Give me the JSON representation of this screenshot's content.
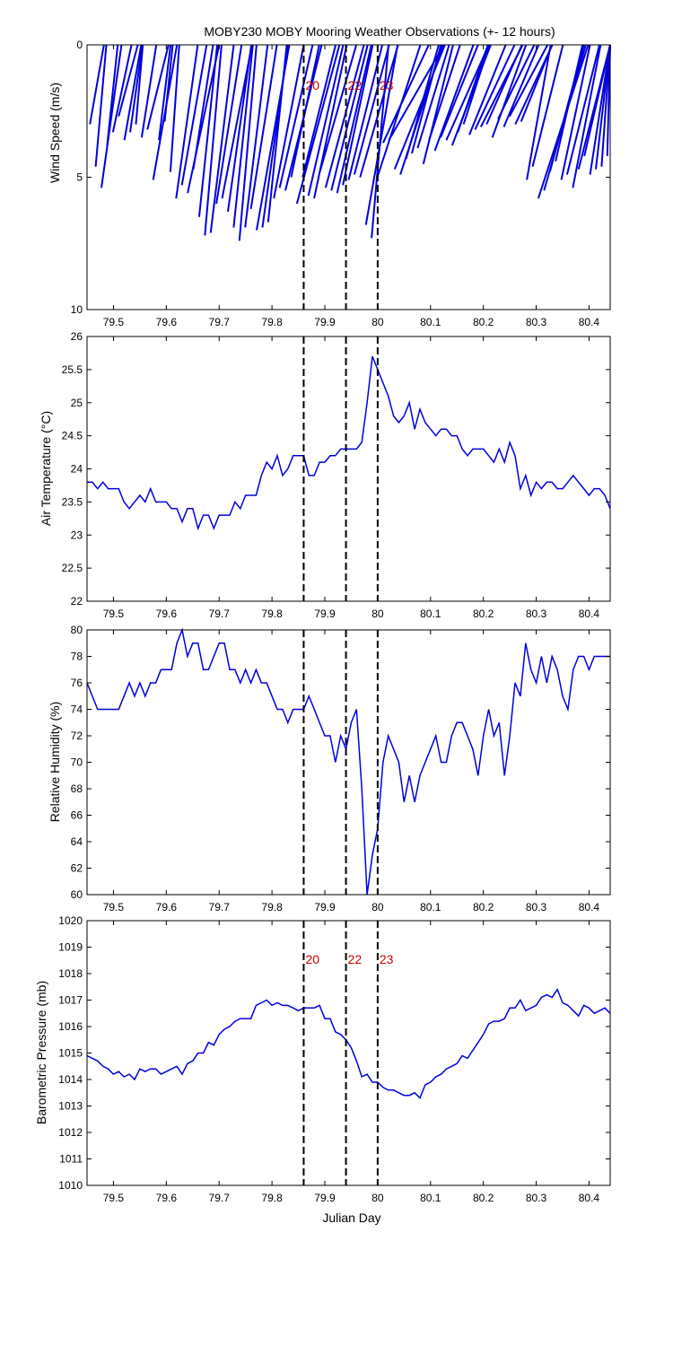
{
  "chart_data": [
    {
      "type": "line",
      "variable": "wind",
      "title": "MOBY230 MOBY Mooring Weather Observations (+- 12 hours)",
      "xlabel": "",
      "ylabel": "Wind Speed (m/s)",
      "xlim": [
        79.45,
        80.44
      ],
      "ylim": [
        10,
        0
      ],
      "yticks": [
        0,
        5,
        10
      ],
      "xticks": [
        79.5,
        79.6,
        79.7,
        79.8,
        79.9,
        80.0,
        80.1,
        80.2,
        80.3,
        80.4
      ],
      "xtick_labels": [
        "79.5",
        "79.6",
        "79.7",
        "79.8",
        "79.9",
        "80",
        "80.1",
        "80.2",
        "80.3",
        "80.4"
      ],
      "vlines": [
        79.86,
        79.94,
        80.0
      ],
      "annotations": [
        {
          "x": 79.86,
          "label": "20"
        },
        {
          "x": 79.94,
          "label": "22"
        },
        {
          "x": 80.0,
          "label": "23"
        }
      ],
      "color": "#0000dd",
      "wind_speed": [
        3.0,
        4.6,
        5.4,
        3.8,
        3.3,
        2.7,
        3.6,
        3.3,
        3.0,
        3.5,
        3.2,
        5.1,
        3.6,
        2.9,
        4.8,
        5.8,
        5.3,
        5.6,
        4.7,
        6.5,
        7.2,
        7.1,
        6.0,
        5.8,
        6.3,
        6.9,
        7.4,
        6.9,
        6.2,
        7.0,
        6.9,
        6.7,
        5.8,
        5.4,
        5.5,
        5.0,
        6.0,
        5.0,
        5.7,
        5.8,
        4.8,
        5.4,
        5.5,
        5.6,
        5.3,
        5.1,
        4.9,
        5.0,
        6.8,
        7.3,
        5.0,
        3.7,
        3.6,
        4.7,
        4.9,
        4.3,
        4.1,
        3.9,
        4.5,
        3.6,
        4.0,
        3.5,
        3.6,
        3.8,
        3.3,
        3.0,
        3.4,
        3.2,
        3.1,
        3.0,
        3.5,
        2.8,
        3.1,
        2.7,
        3.0,
        2.9,
        5.1,
        4.6,
        5.8,
        5.5,
        4.8,
        4.4,
        5.1,
        4.9,
        5.4,
        4.7,
        4.2,
        4.9,
        4.7,
        4.6,
        4.2
      ],
      "wind_dir_deg": [
        10,
        5,
        8,
        6,
        12,
        15,
        10,
        8,
        5,
        9,
        14,
        10,
        7,
        6,
        4,
        8,
        10,
        12,
        9,
        6,
        5,
        7,
        9,
        11,
        8,
        6,
        5,
        7,
        9,
        10,
        8,
        6,
        11,
        13,
        14,
        12,
        15,
        14,
        13,
        12,
        16,
        15,
        14,
        13,
        12,
        14,
        15,
        16,
        10,
        5,
        18,
        25,
        30,
        22,
        18,
        16,
        15,
        17,
        14,
        18,
        20,
        22,
        24,
        21,
        19,
        18,
        22,
        25,
        27,
        24,
        20,
        26,
        23,
        28,
        25,
        22,
        10,
        14,
        18,
        16,
        15,
        13,
        12,
        14,
        11,
        15,
        17,
        13,
        14,
        16,
        18
      ]
    },
    {
      "type": "line",
      "variable": "air_temperature",
      "xlabel": "",
      "ylabel": "Air Temperature (°C)",
      "xlim": [
        79.45,
        80.44
      ],
      "ylim": [
        22,
        26
      ],
      "yticks": [
        22,
        22.5,
        23,
        23.5,
        24,
        24.5,
        25,
        25.5,
        26
      ],
      "ytick_labels": [
        "22",
        "22.5",
        "23",
        "23.5",
        "24",
        "24.5",
        "25",
        "25.5",
        "26"
      ],
      "xticks": [
        79.5,
        79.6,
        79.7,
        79.8,
        79.9,
        80.0,
        80.1,
        80.2,
        80.3,
        80.4
      ],
      "xtick_labels": [
        "79.5",
        "79.6",
        "79.7",
        "79.8",
        "79.9",
        "80",
        "80.1",
        "80.2",
        "80.3",
        "80.4"
      ],
      "vlines": [
        79.86,
        79.94,
        80.0
      ],
      "color": "#0000dd",
      "x": [
        79.45,
        79.46,
        79.47,
        79.48,
        79.49,
        79.5,
        79.51,
        79.52,
        79.53,
        79.54,
        79.55,
        79.56,
        79.57,
        79.58,
        79.59,
        79.6,
        79.61,
        79.62,
        79.63,
        79.64,
        79.65,
        79.66,
        79.67,
        79.68,
        79.69,
        79.7,
        79.71,
        79.72,
        79.73,
        79.74,
        79.75,
        79.76,
        79.77,
        79.78,
        79.79,
        79.8,
        79.81,
        79.82,
        79.83,
        79.84,
        79.85,
        79.86,
        79.87,
        79.88,
        79.89,
        79.9,
        79.91,
        79.92,
        79.93,
        79.94,
        79.95,
        79.96,
        79.97,
        79.98,
        79.99,
        80.0,
        80.01,
        80.02,
        80.03,
        80.04,
        80.05,
        80.06,
        80.07,
        80.08,
        80.09,
        80.1,
        80.11,
        80.12,
        80.13,
        80.14,
        80.15,
        80.16,
        80.17,
        80.18,
        80.19,
        80.2,
        80.21,
        80.22,
        80.23,
        80.24,
        80.25,
        80.26,
        80.27,
        80.28,
        80.29,
        80.3,
        80.31,
        80.32,
        80.33,
        80.34,
        80.35,
        80.36,
        80.37,
        80.38,
        80.39,
        80.4,
        80.41,
        80.42,
        80.43,
        80.44
      ],
      "y": [
        23.8,
        23.8,
        23.7,
        23.8,
        23.7,
        23.7,
        23.7,
        23.5,
        23.4,
        23.5,
        23.6,
        23.5,
        23.7,
        23.5,
        23.5,
        23.5,
        23.4,
        23.4,
        23.2,
        23.4,
        23.4,
        23.1,
        23.3,
        23.3,
        23.1,
        23.3,
        23.3,
        23.3,
        23.5,
        23.4,
        23.6,
        23.6,
        23.6,
        23.9,
        24.1,
        24.0,
        24.2,
        23.9,
        24.0,
        24.2,
        24.2,
        24.2,
        23.9,
        23.9,
        24.1,
        24.1,
        24.2,
        24.2,
        24.3,
        24.3,
        24.3,
        24.3,
        24.4,
        25.0,
        25.7,
        25.5,
        25.3,
        25.1,
        24.8,
        24.7,
        24.8,
        25.0,
        24.6,
        24.9,
        24.7,
        24.6,
        24.5,
        24.6,
        24.6,
        24.5,
        24.5,
        24.3,
        24.2,
        24.3,
        24.3,
        24.3,
        24.2,
        24.1,
        24.3,
        24.1,
        24.4,
        24.2,
        23.7,
        23.9,
        23.6,
        23.8,
        23.7,
        23.8,
        23.8,
        23.7,
        23.7,
        23.8,
        23.9,
        23.8,
        23.7,
        23.6,
        23.7,
        23.7,
        23.6,
        23.4
      ]
    },
    {
      "type": "line",
      "variable": "relative_humidity",
      "xlabel": "",
      "ylabel": "Relative Humidity (%)",
      "xlim": [
        79.45,
        80.44
      ],
      "ylim": [
        60,
        80
      ],
      "yticks": [
        60,
        62,
        64,
        66,
        68,
        70,
        72,
        74,
        76,
        78,
        80
      ],
      "ytick_labels": [
        "60",
        "62",
        "64",
        "66",
        "68",
        "70",
        "72",
        "74",
        "76",
        "78",
        "80"
      ],
      "xticks": [
        79.5,
        79.6,
        79.7,
        79.8,
        79.9,
        80.0,
        80.1,
        80.2,
        80.3,
        80.4
      ],
      "xtick_labels": [
        "79.5",
        "79.6",
        "79.7",
        "79.8",
        "79.9",
        "80",
        "80.1",
        "80.2",
        "80.3",
        "80.4"
      ],
      "vlines": [
        79.86,
        79.94,
        80.0
      ],
      "color": "#0000dd",
      "x": [
        79.45,
        79.46,
        79.47,
        79.48,
        79.49,
        79.5,
        79.51,
        79.52,
        79.53,
        79.54,
        79.55,
        79.56,
        79.57,
        79.58,
        79.59,
        79.6,
        79.61,
        79.62,
        79.63,
        79.64,
        79.65,
        79.66,
        79.67,
        79.68,
        79.69,
        79.7,
        79.71,
        79.72,
        79.73,
        79.74,
        79.75,
        79.76,
        79.77,
        79.78,
        79.79,
        79.8,
        79.81,
        79.82,
        79.83,
        79.84,
        79.85,
        79.86,
        79.87,
        79.88,
        79.89,
        79.9,
        79.91,
        79.92,
        79.93,
        79.94,
        79.95,
        79.96,
        79.97,
        79.98,
        79.99,
        80.0,
        80.01,
        80.02,
        80.03,
        80.04,
        80.05,
        80.06,
        80.07,
        80.08,
        80.09,
        80.1,
        80.11,
        80.12,
        80.13,
        80.14,
        80.15,
        80.16,
        80.17,
        80.18,
        80.19,
        80.2,
        80.21,
        80.22,
        80.23,
        80.24,
        80.25,
        80.26,
        80.27,
        80.28,
        80.29,
        80.3,
        80.31,
        80.32,
        80.33,
        80.34,
        80.35,
        80.36,
        80.37,
        80.38,
        80.39,
        80.4,
        80.41,
        80.42,
        80.43,
        80.44
      ],
      "y": [
        76,
        75,
        74,
        74,
        74,
        74,
        74,
        75,
        76,
        75,
        76,
        75,
        76,
        76,
        77,
        77,
        77,
        79,
        80,
        78,
        79,
        79,
        77,
        77,
        78,
        79,
        79,
        77,
        77,
        76,
        77,
        76,
        77,
        76,
        76,
        75,
        74,
        74,
        73,
        74,
        74,
        74,
        75,
        74,
        73,
        72,
        72,
        70,
        72,
        71,
        73,
        74,
        68,
        60,
        63,
        65,
        70,
        72,
        71,
        70,
        67,
        69,
        67,
        69,
        70,
        71,
        72,
        70,
        70,
        72,
        73,
        73,
        72,
        71,
        69,
        72,
        74,
        72,
        73,
        69,
        72,
        76,
        75,
        79,
        77,
        76,
        78,
        76,
        78,
        77,
        75,
        74,
        77,
        78,
        78,
        77,
        78,
        78,
        78,
        78
      ]
    },
    {
      "type": "line",
      "variable": "barometric_pressure",
      "xlabel": "Julian Day",
      "ylabel": "Barometric Pressure (mb)",
      "xlim": [
        79.45,
        80.44
      ],
      "ylim": [
        1010,
        1020
      ],
      "yticks": [
        1010,
        1011,
        1012,
        1013,
        1014,
        1015,
        1016,
        1017,
        1018,
        1019,
        1020
      ],
      "ytick_labels": [
        "1010",
        "1011",
        "1012",
        "1013",
        "1014",
        "1015",
        "1016",
        "1017",
        "1018",
        "1019",
        "1020"
      ],
      "xticks": [
        79.5,
        79.6,
        79.7,
        79.8,
        79.9,
        80.0,
        80.1,
        80.2,
        80.3,
        80.4
      ],
      "xtick_labels": [
        "79.5",
        "79.6",
        "79.7",
        "79.8",
        "79.9",
        "80",
        "80.1",
        "80.2",
        "80.3",
        "80.4"
      ],
      "vlines": [
        79.86,
        79.94,
        80.0
      ],
      "annotations": [
        {
          "x": 79.86,
          "label": "20"
        },
        {
          "x": 79.94,
          "label": "22"
        },
        {
          "x": 80.0,
          "label": "23"
        }
      ],
      "color": "#0000dd",
      "x": [
        79.45,
        79.46,
        79.47,
        79.48,
        79.49,
        79.5,
        79.51,
        79.52,
        79.53,
        79.54,
        79.55,
        79.56,
        79.57,
        79.58,
        79.59,
        79.6,
        79.61,
        79.62,
        79.63,
        79.64,
        79.65,
        79.66,
        79.67,
        79.68,
        79.69,
        79.7,
        79.71,
        79.72,
        79.73,
        79.74,
        79.75,
        79.76,
        79.77,
        79.78,
        79.79,
        79.8,
        79.81,
        79.82,
        79.83,
        79.84,
        79.85,
        79.86,
        79.87,
        79.88,
        79.89,
        79.9,
        79.91,
        79.92,
        79.93,
        79.94,
        79.95,
        79.96,
        79.97,
        79.98,
        79.99,
        80.0,
        80.01,
        80.02,
        80.03,
        80.04,
        80.05,
        80.06,
        80.07,
        80.08,
        80.09,
        80.1,
        80.11,
        80.12,
        80.13,
        80.14,
        80.15,
        80.16,
        80.17,
        80.18,
        80.19,
        80.2,
        80.21,
        80.22,
        80.23,
        80.24,
        80.25,
        80.26,
        80.27,
        80.28,
        80.29,
        80.3,
        80.31,
        80.32,
        80.33,
        80.34,
        80.35,
        80.36,
        80.37,
        80.38,
        80.39,
        80.4,
        80.41,
        80.42,
        80.43,
        80.44
      ],
      "y": [
        1014.9,
        1014.8,
        1014.7,
        1014.5,
        1014.4,
        1014.2,
        1014.3,
        1014.1,
        1014.2,
        1014.0,
        1014.4,
        1014.3,
        1014.4,
        1014.4,
        1014.2,
        1014.3,
        1014.4,
        1014.5,
        1014.2,
        1014.6,
        1014.7,
        1015.0,
        1015.0,
        1015.4,
        1015.3,
        1015.7,
        1015.9,
        1016.0,
        1016.2,
        1016.3,
        1016.3,
        1016.3,
        1016.8,
        1016.9,
        1017.0,
        1016.8,
        1016.9,
        1016.8,
        1016.8,
        1016.7,
        1016.6,
        1016.7,
        1016.7,
        1016.7,
        1016.8,
        1016.3,
        1016.3,
        1015.8,
        1015.7,
        1015.5,
        1015.2,
        1014.7,
        1014.1,
        1014.2,
        1013.9,
        1013.9,
        1013.7,
        1013.6,
        1013.6,
        1013.5,
        1013.4,
        1013.4,
        1013.5,
        1013.3,
        1013.8,
        1013.9,
        1014.1,
        1014.2,
        1014.4,
        1014.5,
        1014.6,
        1014.9,
        1014.8,
        1015.1,
        1015.4,
        1015.7,
        1016.1,
        1016.2,
        1016.2,
        1016.3,
        1016.7,
        1016.7,
        1017.0,
        1016.6,
        1016.7,
        1016.8,
        1017.1,
        1017.2,
        1017.1,
        1017.4,
        1016.9,
        1016.8,
        1016.6,
        1016.4,
        1016.8,
        1016.7,
        1016.5,
        1016.6,
        1016.7,
        1016.5
      ]
    }
  ]
}
